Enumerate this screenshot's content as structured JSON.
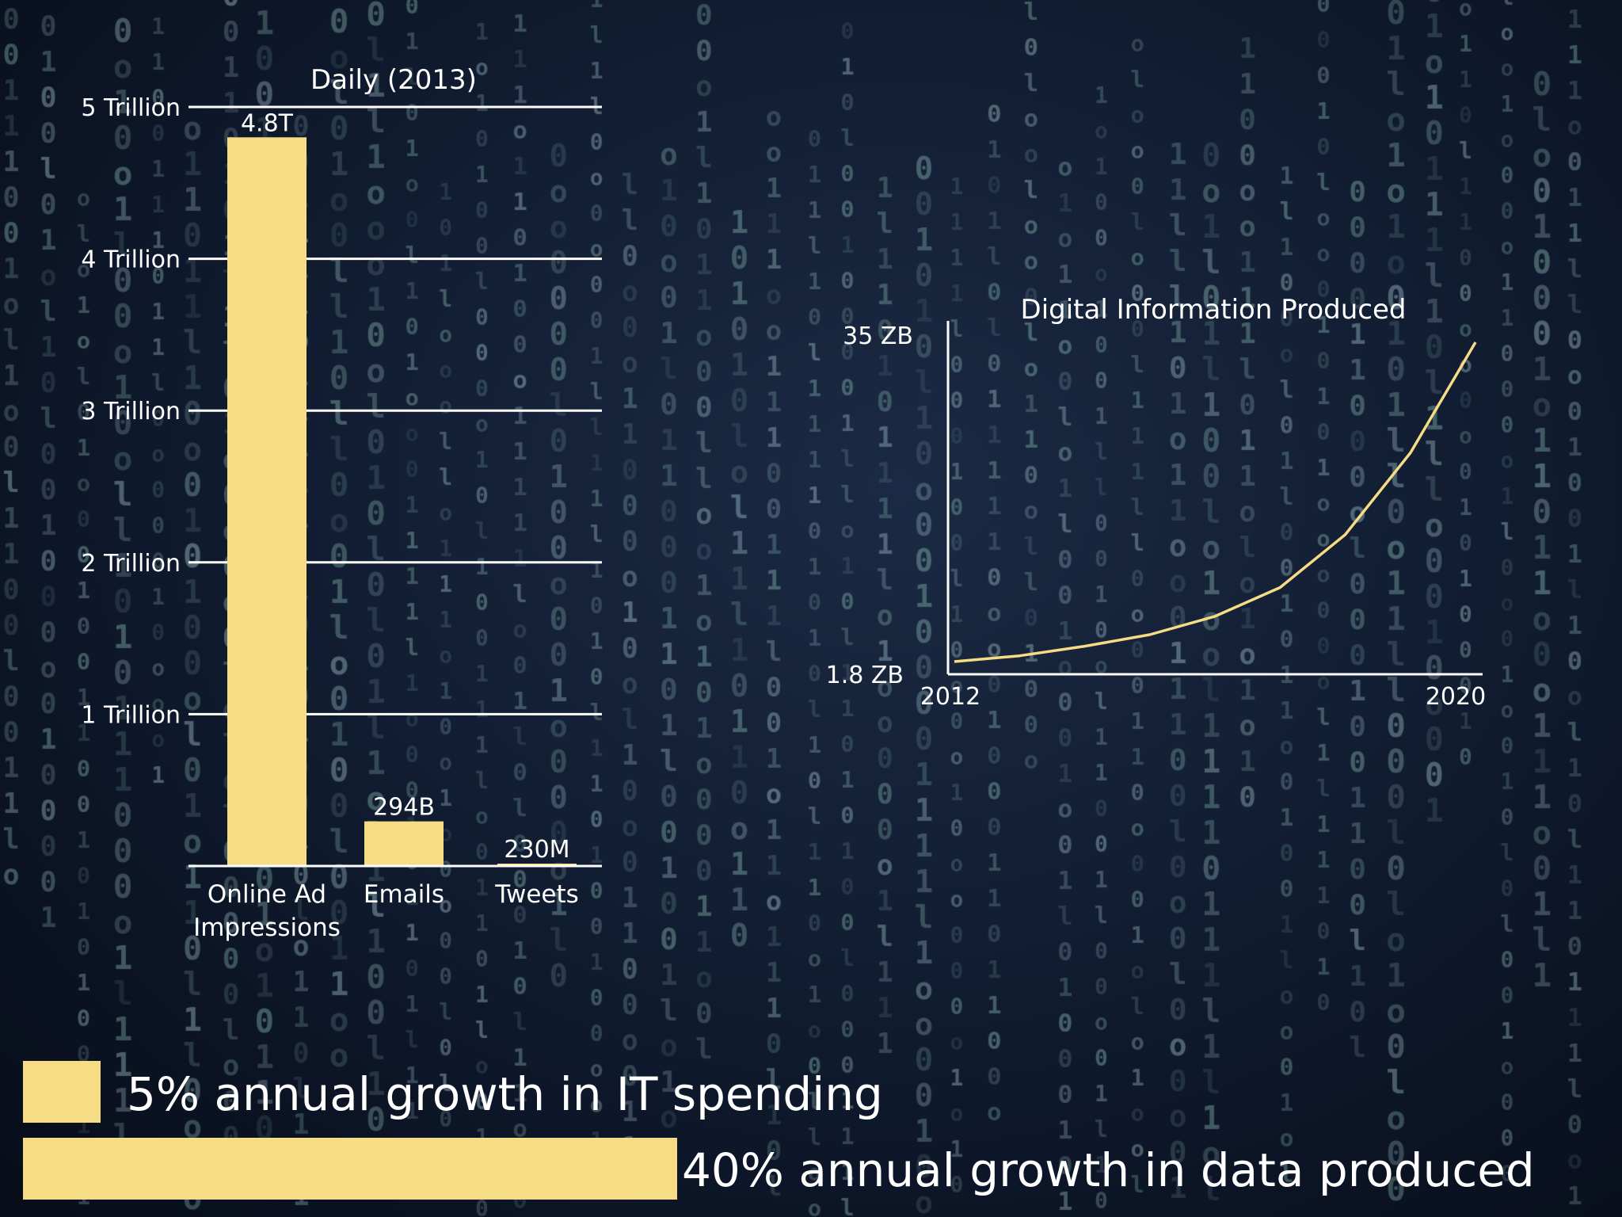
{
  "chart_data": [
    {
      "type": "bar",
      "title": "Daily (2013)",
      "categories": [
        "Online Ad Impressions",
        "Emails",
        "Tweets"
      ],
      "category_lines": [
        [
          "Online Ad",
          "Impressions"
        ],
        [
          "Emails"
        ],
        [
          "Tweets"
        ]
      ],
      "values": [
        4800000000000,
        294000000000,
        230000000
      ],
      "data_labels": [
        "4.8T",
        "294B",
        "230M"
      ],
      "ylim": [
        0,
        5000000000000
      ],
      "yticks": [
        1000000000000,
        2000000000000,
        3000000000000,
        4000000000000,
        5000000000000
      ],
      "ytick_labels": [
        "1 Trillion",
        "2 Trillion",
        "3 Trillion",
        "4 Trillion",
        "5 Trillion"
      ],
      "grid": true,
      "color": "#f7dc86"
    },
    {
      "type": "line",
      "title": "Digital Information Produced",
      "x": [
        2012,
        2013,
        2014,
        2015,
        2016,
        2017,
        2018,
        2019,
        2020
      ],
      "y": [
        1.8,
        2.4,
        3.4,
        4.6,
        6.5,
        9.5,
        15,
        23.5,
        35
      ],
      "xlim": [
        2012,
        2020
      ],
      "ylim": [
        1.8,
        35
      ],
      "xtick_labels": [
        "2012",
        "2020"
      ],
      "ytick_labels": [
        "1.8 ZB",
        "35 ZB"
      ],
      "color": "#f7dc86"
    }
  ],
  "legend": {
    "it_spending": "5% annual growth in IT spending",
    "it_spending_value": 5,
    "data_produced": "40% annual growth in data produced",
    "data_produced_value": 40,
    "color": "#f7dc86"
  }
}
